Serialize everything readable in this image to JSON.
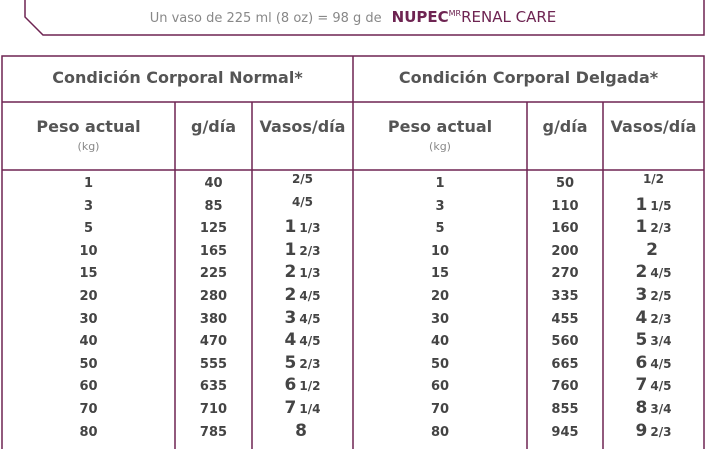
{
  "banner": {
    "text": "Un vaso de 225 ml (8 oz) = 98 g de",
    "brand": "NUPEC",
    "brand_mark": "MR",
    "product": "RENAL CARE"
  },
  "table": {
    "groups": [
      {
        "title": "Condición Corporal Normal*",
        "columns": [
          {
            "label": "Peso actual",
            "unit": "(kg)"
          },
          {
            "label": "g/día"
          },
          {
            "label": "Vasos/día"
          }
        ],
        "rows": [
          [
            "1",
            "40",
            {
              "frac": "2/5"
            }
          ],
          [
            "3",
            "85",
            {
              "frac": "4/5"
            }
          ],
          [
            "5",
            "125",
            {
              "whole": "1",
              "frac": "1/3"
            }
          ],
          [
            "10",
            "165",
            {
              "whole": "1",
              "frac": "2/3"
            }
          ],
          [
            "15",
            "225",
            {
              "whole": "2",
              "frac": "1/3"
            }
          ],
          [
            "20",
            "280",
            {
              "whole": "2",
              "frac": "4/5"
            }
          ],
          [
            "30",
            "380",
            {
              "whole": "3",
              "frac": "4/5"
            }
          ],
          [
            "40",
            "470",
            {
              "whole": "4",
              "frac": "4/5"
            }
          ],
          [
            "50",
            "555",
            {
              "whole": "5",
              "frac": "2/3"
            }
          ],
          [
            "60",
            "635",
            {
              "whole": "6",
              "frac": "1/2"
            }
          ],
          [
            "70",
            "710",
            {
              "whole": "7",
              "frac": "1/4"
            }
          ],
          [
            "80",
            "785",
            {
              "whole": "8"
            }
          ]
        ]
      },
      {
        "title": "Condición Corporal Delgada*",
        "columns": [
          {
            "label": "Peso actual",
            "unit": "(kg)"
          },
          {
            "label": "g/día"
          },
          {
            "label": "Vasos/día"
          }
        ],
        "rows": [
          [
            "1",
            "50",
            {
              "frac": "1/2"
            }
          ],
          [
            "3",
            "110",
            {
              "whole": "1",
              "frac": "1/5"
            }
          ],
          [
            "5",
            "160",
            {
              "whole": "1",
              "frac": "2/3"
            }
          ],
          [
            "10",
            "200",
            {
              "whole": "2"
            }
          ],
          [
            "15",
            "270",
            {
              "whole": "2",
              "frac": "4/5"
            }
          ],
          [
            "20",
            "335",
            {
              "whole": "3",
              "frac": "2/5"
            }
          ],
          [
            "30",
            "455",
            {
              "whole": "4",
              "frac": "2/3"
            }
          ],
          [
            "40",
            "560",
            {
              "whole": "5",
              "frac": "3/4"
            }
          ],
          [
            "50",
            "665",
            {
              "whole": "6",
              "frac": "4/5"
            }
          ],
          [
            "60",
            "760",
            {
              "whole": "7",
              "frac": "4/5"
            }
          ],
          [
            "70",
            "855",
            {
              "whole": "8",
              "frac": "3/4"
            }
          ],
          [
            "80",
            "945",
            {
              "whole": "9",
              "frac": "2/3"
            }
          ]
        ]
      }
    ]
  }
}
